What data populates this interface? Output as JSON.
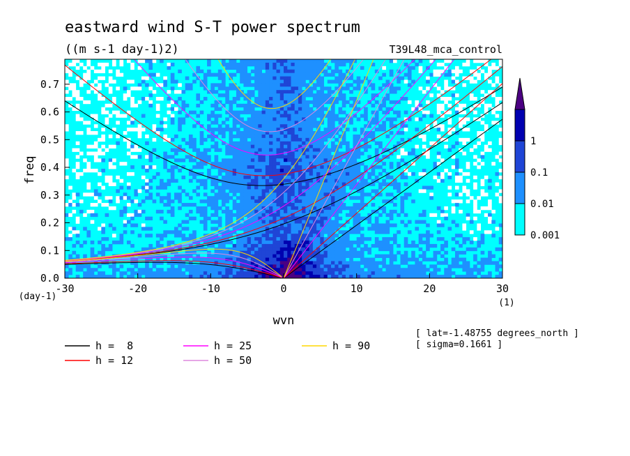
{
  "chart_data": {
    "type": "heatmap",
    "title": "eastward wind S-T power spectrum",
    "subtitle": "((m s-1 day-1)2)",
    "dataset_label": "T39L48_mca_control",
    "xlabel": "wvn",
    "ylabel": "freq",
    "x_unit": "(1)",
    "y_unit": "(day-1)",
    "xlim": [
      -30,
      30
    ],
    "ylim": [
      0,
      0.79
    ],
    "x_ticks": [
      -30,
      -20,
      -10,
      0,
      10,
      20,
      30
    ],
    "y_ticks": [
      0.0,
      0.1,
      0.2,
      0.3,
      0.4,
      0.5,
      0.6,
      0.7
    ],
    "x_tick_labels": [
      "-30",
      "-20",
      "-10",
      "0",
      "10",
      "20",
      "30"
    ],
    "y_tick_labels": [
      "0.0",
      "0.1",
      "0.2",
      "0.3",
      "0.4",
      "0.5",
      "0.6",
      "0.7"
    ],
    "colorbar": {
      "levels": [
        0.001,
        0.01,
        0.1,
        1
      ],
      "labels": [
        "0.001",
        "0.01",
        "0.1",
        "1"
      ],
      "colors": [
        "#00ffff",
        "#1e90ff",
        "#1f45d6",
        "#0000b0",
        "#4b0082"
      ]
    },
    "annotations": [
      "[ lat=-1.48755 degrees_north ]",
      "[ sigma=0.1661 ]"
    ],
    "dispersion_curves": [
      {
        "label": "h =  8",
        "h": 8,
        "color": "#000000"
      },
      {
        "label": "h = 12",
        "h": 12,
        "color": "#ff0000"
      },
      {
        "label": "h = 25",
        "h": 25,
        "color": "#ff00ff"
      },
      {
        "label": "h = 50",
        "h": 50,
        "color": "#dd88dd"
      },
      {
        "label": "h = 90",
        "h": 90,
        "color": "#ffd700"
      }
    ]
  }
}
